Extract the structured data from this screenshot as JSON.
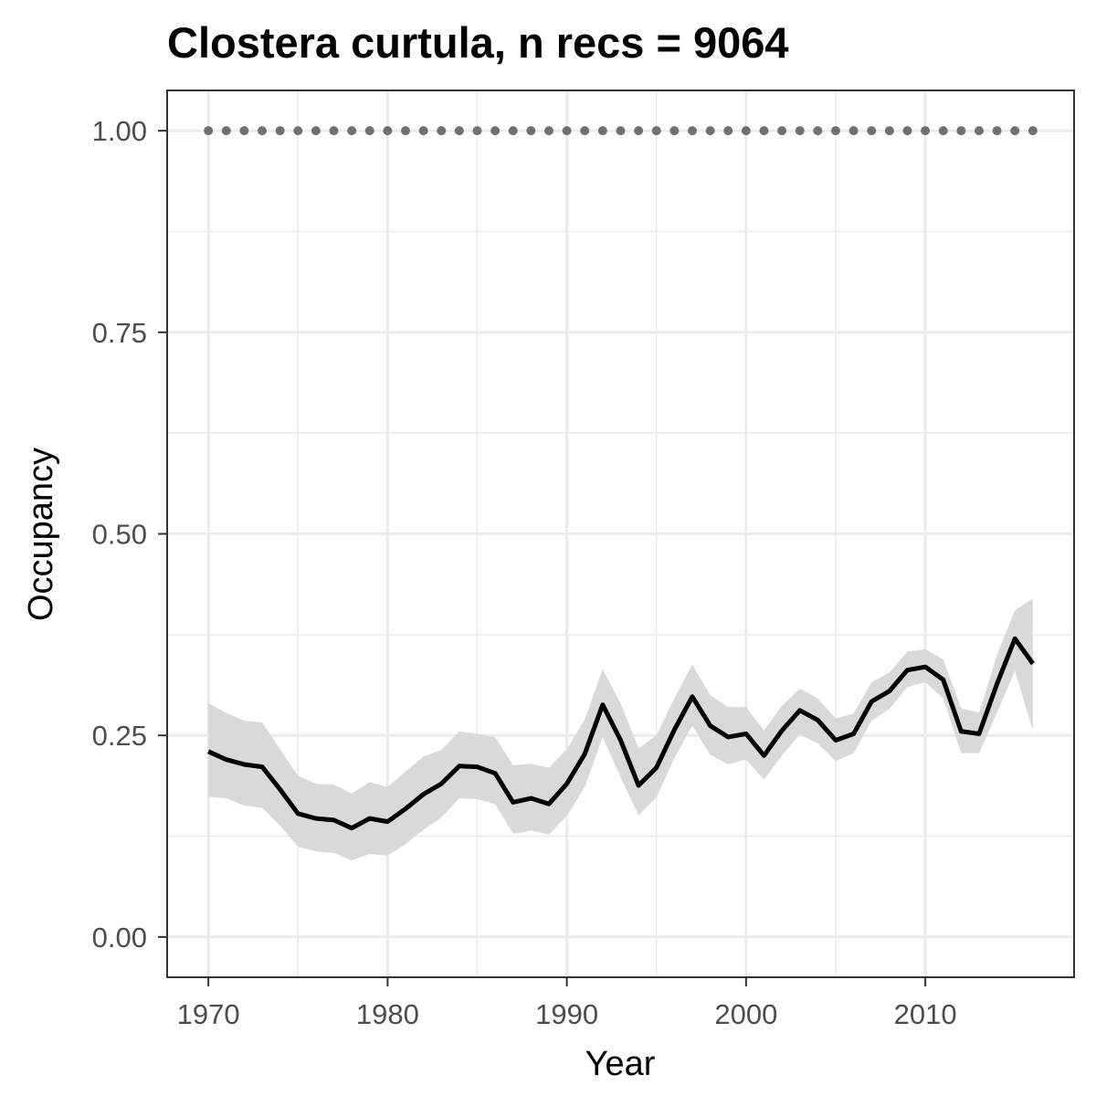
{
  "chart_data": {
    "type": "line",
    "title": "Clostera curtula, n recs = 9064",
    "xlabel": "Year",
    "ylabel": "Occupancy",
    "xlim": [
      1967.7,
      2018.3
    ],
    "ylim": [
      -0.05,
      1.05
    ],
    "xticks": [
      "1970",
      "1980",
      "1990",
      "2000",
      "2010"
    ],
    "yticks": [
      "0.00",
      "0.25",
      "0.50",
      "0.75",
      "1.00"
    ],
    "grid": true,
    "legend": "none",
    "colors": {
      "line": "#000000",
      "ribbon": "#d9d9d9",
      "points": "#707070",
      "grid": "#ebebeb",
      "border": "#333333"
    },
    "series": [
      {
        "kind": "points",
        "x": [
          1970,
          1971,
          1972,
          1973,
          1974,
          1975,
          1976,
          1977,
          1978,
          1979,
          1980,
          1981,
          1982,
          1983,
          1984,
          1985,
          1986,
          1987,
          1988,
          1989,
          1990,
          1991,
          1992,
          1993,
          1994,
          1995,
          1996,
          1997,
          1998,
          1999,
          2000,
          2001,
          2002,
          2003,
          2004,
          2005,
          2006,
          2007,
          2008,
          2009,
          2010,
          2011,
          2012,
          2013,
          2014,
          2015,
          2016
        ],
        "y": [
          1,
          1,
          1,
          1,
          1,
          1,
          1,
          1,
          1,
          1,
          1,
          1,
          1,
          1,
          1,
          1,
          1,
          1,
          1,
          1,
          1,
          1,
          1,
          1,
          1,
          1,
          1,
          1,
          1,
          1,
          1,
          1,
          1,
          1,
          1,
          1,
          1,
          1,
          1,
          1,
          1,
          1,
          1,
          1,
          1,
          1,
          1
        ]
      },
      {
        "kind": "line_with_ribbon",
        "x": [
          1970,
          1971,
          1972,
          1973,
          1974,
          1975,
          1976,
          1977,
          1978,
          1979,
          1980,
          1981,
          1982,
          1983,
          1984,
          1985,
          1986,
          1987,
          1988,
          1989,
          1990,
          1991,
          1992,
          1993,
          1994,
          1995,
          1996,
          1997,
          1998,
          1999,
          2000,
          2001,
          2002,
          2003,
          2004,
          2005,
          2006,
          2007,
          2008,
          2009,
          2010,
          2011,
          2012,
          2013,
          2014,
          2015,
          2016
        ],
        "y": [
          0.23,
          0.22,
          0.214,
          0.211,
          0.183,
          0.153,
          0.147,
          0.145,
          0.135,
          0.147,
          0.143,
          0.159,
          0.177,
          0.19,
          0.212,
          0.211,
          0.203,
          0.167,
          0.172,
          0.165,
          0.19,
          0.227,
          0.288,
          0.244,
          0.188,
          0.21,
          0.257,
          0.298,
          0.262,
          0.248,
          0.252,
          0.225,
          0.256,
          0.281,
          0.269,
          0.244,
          0.252,
          0.292,
          0.305,
          0.331,
          0.335,
          0.319,
          0.255,
          0.252,
          0.314,
          0.37,
          0.339
        ],
        "lower": [
          0.174,
          0.172,
          0.163,
          0.16,
          0.138,
          0.112,
          0.106,
          0.104,
          0.095,
          0.103,
          0.101,
          0.115,
          0.133,
          0.148,
          0.172,
          0.171,
          0.165,
          0.128,
          0.132,
          0.127,
          0.15,
          0.186,
          0.248,
          0.198,
          0.151,
          0.173,
          0.222,
          0.262,
          0.226,
          0.214,
          0.22,
          0.195,
          0.225,
          0.251,
          0.24,
          0.218,
          0.228,
          0.268,
          0.283,
          0.31,
          0.316,
          0.296,
          0.228,
          0.228,
          0.278,
          0.33,
          0.256
        ],
        "upper": [
          0.29,
          0.278,
          0.268,
          0.266,
          0.233,
          0.2,
          0.19,
          0.189,
          0.178,
          0.192,
          0.186,
          0.205,
          0.224,
          0.232,
          0.255,
          0.252,
          0.248,
          0.213,
          0.215,
          0.21,
          0.233,
          0.27,
          0.332,
          0.29,
          0.234,
          0.25,
          0.296,
          0.338,
          0.3,
          0.285,
          0.285,
          0.256,
          0.287,
          0.308,
          0.296,
          0.271,
          0.277,
          0.316,
          0.328,
          0.354,
          0.357,
          0.344,
          0.284,
          0.278,
          0.35,
          0.405,
          0.42
        ]
      }
    ]
  }
}
